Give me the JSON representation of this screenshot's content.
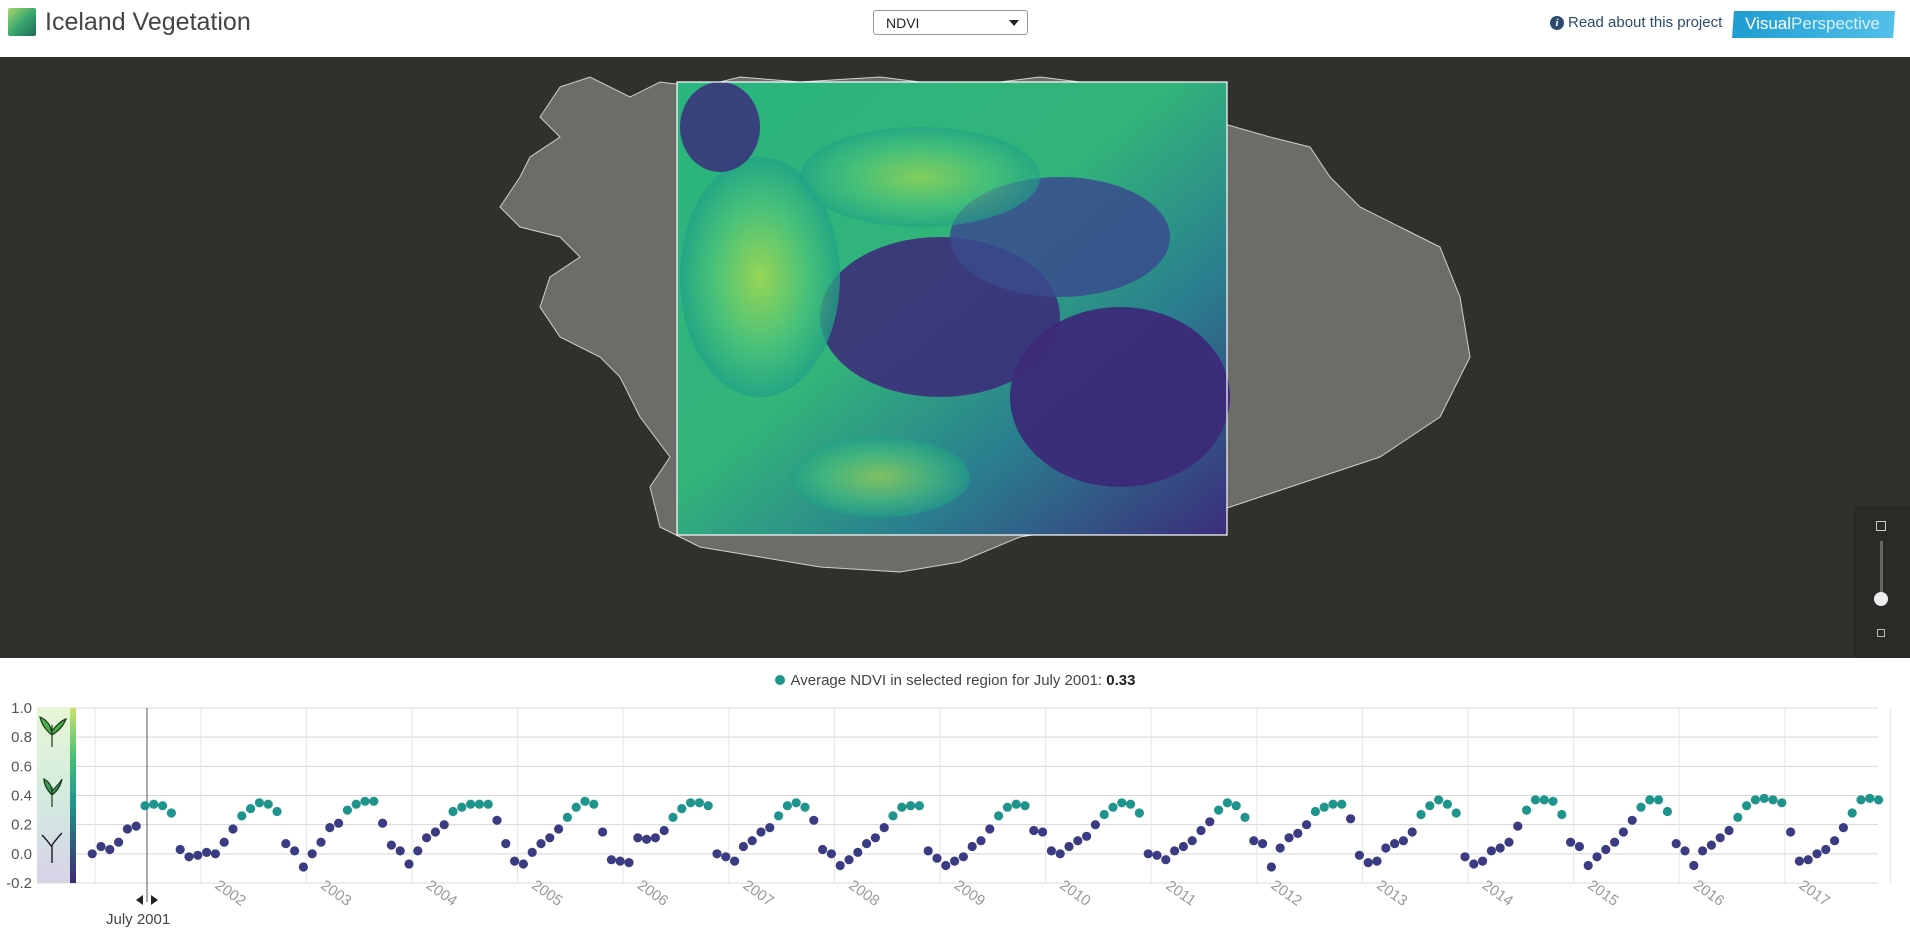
{
  "header": {
    "title": "Iceland Vegetation",
    "layer_select": "NDVI",
    "read_link": "Read about this project",
    "brand": {
      "part1": "Visual",
      "part2": "Perspective"
    }
  },
  "legend": {
    "text": "Average NDVI in selected region for July 2001:",
    "value": "0.33"
  },
  "time_readout": "July 2001",
  "colors": {
    "ndvi_high": "#1f948c",
    "ndvi_low": "#3b3b83",
    "map_background": "#31302c"
  },
  "chart_data": {
    "type": "scatter",
    "xlabel": "",
    "ylabel": "",
    "ylim": [
      -0.2,
      1.0
    ],
    "y_ticks": [
      "1.0",
      "0.8",
      "0.6",
      "0.4",
      "0.2",
      "0.0",
      "-0.2"
    ],
    "year_labels": [
      "2002",
      "2003",
      "2004",
      "2005",
      "2006",
      "2007",
      "2008",
      "2009",
      "2010",
      "2011",
      "2012",
      "2013",
      "2014",
      "2015",
      "2016",
      "2017"
    ],
    "start": "2001-01",
    "end": "2017-12",
    "selected": "2001-07",
    "monthly_ndvi": [
      [
        0.0,
        0.05,
        0.03,
        0.08,
        0.17,
        0.19,
        0.33,
        0.34,
        0.33,
        0.28,
        0.03,
        -0.02
      ],
      [
        -0.01,
        0.01,
        0.0,
        0.08,
        0.17,
        0.26,
        0.31,
        0.35,
        0.34,
        0.29,
        0.07,
        0.02
      ],
      [
        -0.09,
        0.0,
        0.08,
        0.18,
        0.21,
        0.3,
        0.34,
        0.36,
        0.36,
        0.21,
        0.06,
        0.02
      ],
      [
        -0.07,
        0.02,
        0.11,
        0.15,
        0.2,
        0.29,
        0.32,
        0.34,
        0.34,
        0.34,
        0.23,
        0.07
      ],
      [
        -0.05,
        -0.07,
        0.01,
        0.07,
        0.11,
        0.17,
        0.25,
        0.32,
        0.36,
        0.34,
        0.15,
        -0.04
      ],
      [
        -0.05,
        -0.06,
        0.11,
        0.1,
        0.11,
        0.16,
        0.25,
        0.31,
        0.35,
        0.35,
        0.33,
        0.0
      ],
      [
        -0.02,
        -0.05,
        0.05,
        0.09,
        0.15,
        0.18,
        0.26,
        0.33,
        0.35,
        0.32,
        0.23,
        0.03
      ],
      [
        0.0,
        -0.08,
        -0.04,
        0.01,
        0.07,
        0.11,
        0.18,
        0.26,
        0.32,
        0.33,
        0.33,
        0.02
      ],
      [
        -0.03,
        -0.08,
        -0.05,
        -0.02,
        0.05,
        0.09,
        0.17,
        0.26,
        0.32,
        0.34,
        0.33,
        0.16
      ],
      [
        0.15,
        0.02,
        0.0,
        0.05,
        0.09,
        0.12,
        0.2,
        0.27,
        0.32,
        0.35,
        0.34,
        0.28
      ],
      [
        0.0,
        -0.01,
        -0.04,
        0.02,
        0.05,
        0.09,
        0.16,
        0.22,
        0.3,
        0.35,
        0.33,
        0.25
      ],
      [
        0.09,
        0.07,
        -0.09,
        0.04,
        0.11,
        0.14,
        0.2,
        0.29,
        0.32,
        0.34,
        0.34,
        0.24
      ],
      [
        -0.01,
        -0.06,
        -0.05,
        0.04,
        0.07,
        0.09,
        0.15,
        0.27,
        0.33,
        0.37,
        0.34,
        0.28
      ],
      [
        -0.02,
        -0.07,
        -0.05,
        0.02,
        0.04,
        0.08,
        0.19,
        0.3,
        0.37,
        0.37,
        0.36,
        0.27
      ],
      [
        0.08,
        0.05,
        -0.08,
        -0.02,
        0.03,
        0.08,
        0.15,
        0.23,
        0.32,
        0.37,
        0.37,
        0.29
      ],
      [
        0.07,
        0.02,
        -0.08,
        0.02,
        0.06,
        0.11,
        0.16,
        0.25,
        0.33,
        0.37,
        0.38,
        0.37
      ],
      [
        0.35,
        0.15,
        -0.05,
        -0.04,
        0.0,
        0.03,
        0.09,
        0.18,
        0.28,
        0.37,
        0.38,
        0.37
      ]
    ]
  }
}
